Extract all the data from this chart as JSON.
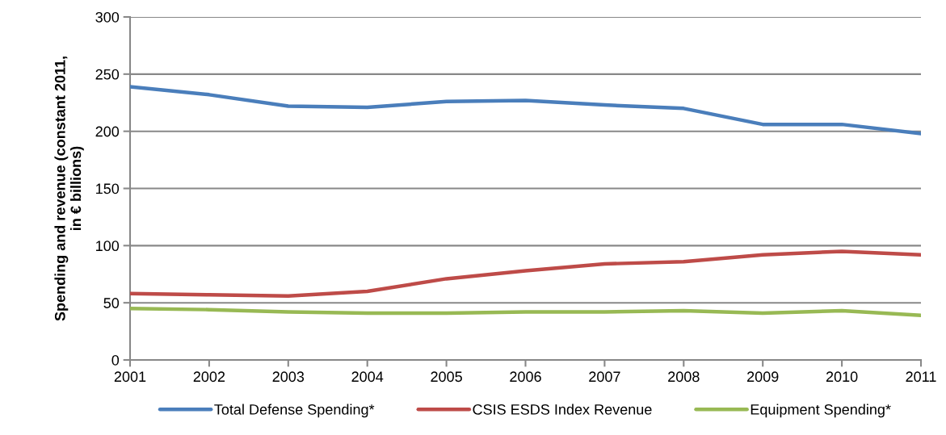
{
  "chart_data": {
    "type": "line",
    "ylabel": "Spending and revenue (constant 2011,\nin € billions)",
    "x": [
      2001,
      2002,
      2003,
      2004,
      2005,
      2006,
      2007,
      2008,
      2009,
      2010,
      2011
    ],
    "xlim": [
      2001,
      2011
    ],
    "xticks": [
      2001,
      2002,
      2003,
      2004,
      2005,
      2006,
      2007,
      2008,
      2009,
      2010,
      2011
    ],
    "ylim": [
      0,
      300
    ],
    "yticks": [
      0,
      50,
      100,
      150,
      200,
      250,
      300
    ],
    "grid": "y",
    "legend": "bottom",
    "marker": "none",
    "line_style": "solid",
    "series": [
      {
        "name": "Total Defense Spending*",
        "color": "#4a7ebb",
        "values": [
          239,
          232,
          222,
          221,
          226,
          227,
          223,
          220,
          206,
          206,
          198
        ]
      },
      {
        "name": "CSIS ESDS Index Revenue",
        "color": "#be4b48",
        "values": [
          58,
          57,
          56,
          60,
          71,
          78,
          84,
          86,
          92,
          95,
          92
        ]
      },
      {
        "name": "Equipment Spending*",
        "color": "#98b954",
        "values": [
          45,
          44,
          42,
          41,
          41,
          42,
          42,
          43,
          41,
          43,
          39
        ]
      }
    ]
  }
}
